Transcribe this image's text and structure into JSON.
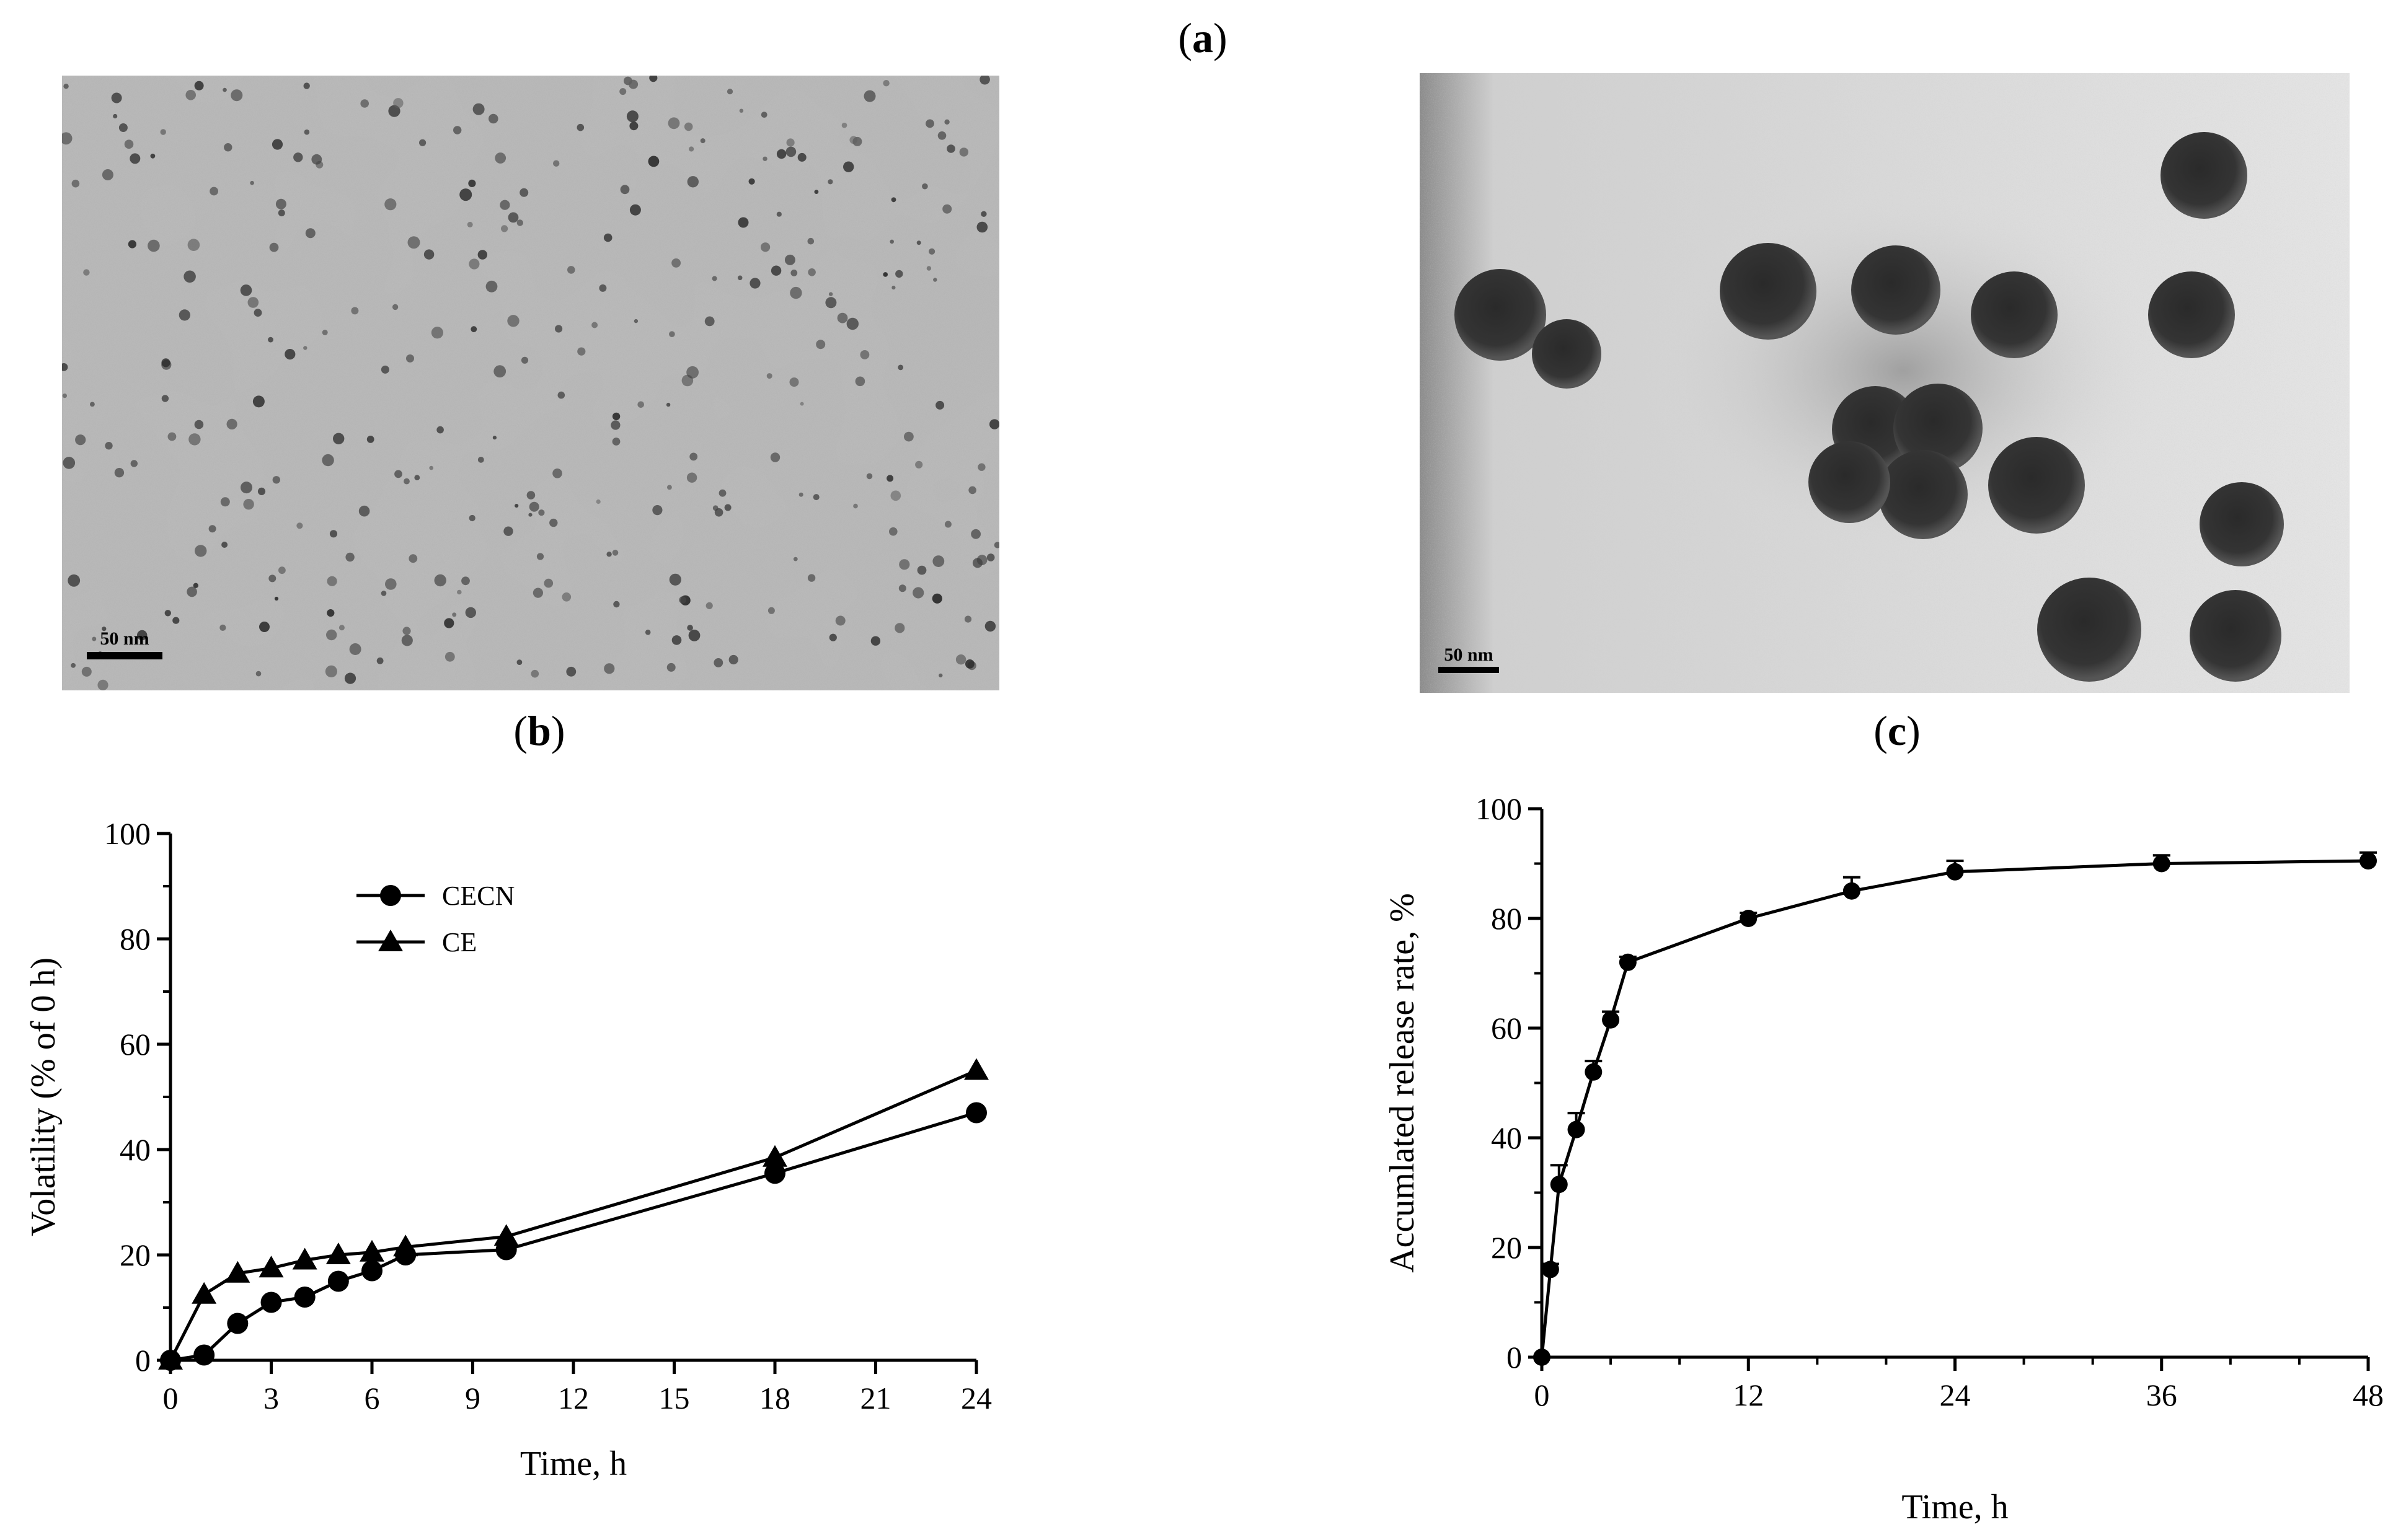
{
  "panel_labels": {
    "a": {
      "open": "(",
      "letter": "a",
      "close": ")"
    },
    "b": {
      "open": "(",
      "letter": "b",
      "close": ")"
    },
    "c": {
      "open": "(",
      "letter": "c",
      "close": ")"
    }
  },
  "micrographs": [
    {
      "scale_label": "50 nm"
    },
    {
      "scale_label": "50 nm"
    }
  ],
  "chart_data": [
    {
      "type": "line",
      "title": "",
      "xlabel": "Time, h",
      "ylabel": "Volatility (% of 0 h)",
      "xlim": [
        0,
        24
      ],
      "ylim": [
        0,
        100
      ],
      "xticks": [
        0,
        3,
        6,
        9,
        12,
        15,
        18,
        21,
        24
      ],
      "yticks": [
        0,
        20,
        40,
        60,
        80,
        100
      ],
      "grid": false,
      "legend_position": "top-center",
      "series": [
        {
          "name": "CECN",
          "marker": "circle",
          "x": [
            0,
            1,
            2,
            3,
            4,
            5,
            6,
            7,
            10,
            18,
            24
          ],
          "y": [
            0,
            1,
            7,
            11,
            12,
            15,
            17,
            20,
            21,
            35.5,
            47
          ]
        },
        {
          "name": "CE",
          "marker": "triangle",
          "x": [
            0,
            1,
            2,
            3,
            4,
            5,
            6,
            7,
            10,
            18,
            24
          ],
          "y": [
            0,
            12.5,
            16.5,
            17.5,
            19,
            20,
            20.5,
            21.5,
            23.5,
            38.5,
            55
          ]
        }
      ]
    },
    {
      "type": "line",
      "title": "",
      "xlabel": "Time, h",
      "ylabel": "Accumlated release rate, %",
      "xlim": [
        0,
        48
      ],
      "ylim": [
        0,
        100
      ],
      "xticks": [
        0,
        12,
        24,
        36,
        48
      ],
      "yticks": [
        0,
        20,
        40,
        60,
        80,
        100
      ],
      "grid": false,
      "series": [
        {
          "marker": "circle",
          "x": [
            0,
            0.5,
            1,
            2,
            3,
            4,
            5,
            12,
            18,
            24,
            36,
            48
          ],
          "y": [
            0,
            16,
            31.5,
            41.5,
            52,
            61.5,
            72,
            80,
            85,
            88.5,
            90,
            90.5
          ],
          "error": [
            0,
            1,
            3.5,
            3,
            2,
            1.5,
            1,
            1,
            2.5,
            2,
            1.5,
            1.5
          ]
        }
      ]
    }
  ]
}
